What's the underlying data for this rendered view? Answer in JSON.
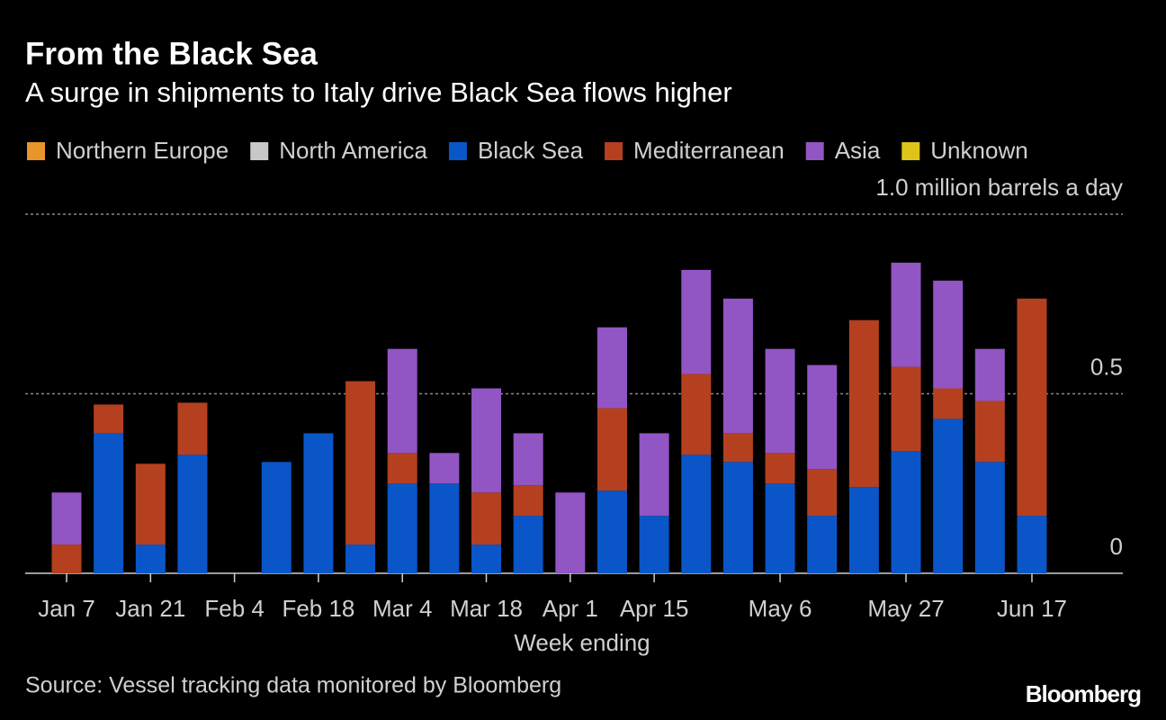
{
  "chart_data": {
    "type": "bar",
    "stacked": true,
    "title": "From the Black Sea",
    "subtitle": "A surge in shipments to Italy drive Black Sea flows higher",
    "x_label": "Week ending",
    "source": "Source: Vessel tracking data monitored by Bloomberg",
    "brand": "Bloomberg",
    "categories": [
      "Jan 7",
      null,
      "Jan 21",
      null,
      "Feb 4",
      null,
      "Feb 18",
      null,
      "Mar 4",
      null,
      "Mar 18",
      null,
      "Apr 1",
      null,
      "Apr 15",
      null,
      null,
      "May 6",
      null,
      null,
      "May 27",
      null,
      null,
      "Jun 17"
    ],
    "series": [
      {
        "name": "Northern Europe",
        "color": "#e8952c",
        "values": [
          0,
          0,
          0,
          0,
          0,
          0,
          0,
          0,
          0,
          0,
          0,
          0,
          0,
          0,
          0,
          0,
          0,
          0,
          0,
          0,
          0,
          0,
          0,
          0
        ]
      },
      {
        "name": "North America",
        "color": "#c8c8c8",
        "values": [
          0,
          0,
          0,
          0,
          0,
          0,
          0,
          0,
          0,
          0,
          0,
          0,
          0,
          0,
          0,
          0,
          0,
          0,
          0,
          0,
          0,
          0,
          0,
          0
        ]
      },
      {
        "name": "Black Sea",
        "color": "#0a56c8",
        "values": [
          0,
          0.39,
          0.08,
          0.33,
          0,
          0.31,
          0.39,
          0.08,
          0.25,
          0.25,
          0.08,
          0.16,
          0,
          0.23,
          0.16,
          0.33,
          0.31,
          0.25,
          0.16,
          0.24,
          0.34,
          0.43,
          0.31,
          0.16
        ]
      },
      {
        "name": "Mediterranean",
        "color": "#b5401f",
        "values": [
          0.08,
          0.08,
          0.225,
          0.145,
          0,
          0,
          0,
          0.455,
          0.085,
          0,
          0.145,
          0.085,
          0,
          0.23,
          0,
          0.225,
          0.08,
          0.085,
          0.13,
          0.465,
          0.235,
          0.085,
          0.17,
          0.605
        ]
      },
      {
        "name": "Asia",
        "color": "#9155c4",
        "values": [
          0.145,
          0,
          0,
          0,
          0,
          0,
          0,
          0,
          0.29,
          0.085,
          0.29,
          0.145,
          0.225,
          0.225,
          0.23,
          0.29,
          0.375,
          0.29,
          0.29,
          0,
          0.29,
          0.3,
          0.145,
          0
        ]
      },
      {
        "name": "Unknown",
        "color": "#e0c31a",
        "values": [
          0,
          0,
          0,
          0,
          0,
          0,
          0,
          0,
          0,
          0,
          0,
          0,
          0,
          0,
          0,
          0,
          0,
          0,
          0,
          0,
          0,
          0,
          0,
          0
        ]
      }
    ],
    "ylim": [
      0,
      1
    ],
    "yticks": [
      0,
      0.5,
      {
        "value": 1,
        "label": "1.0 million barrels a day"
      }
    ],
    "grid": true
  }
}
